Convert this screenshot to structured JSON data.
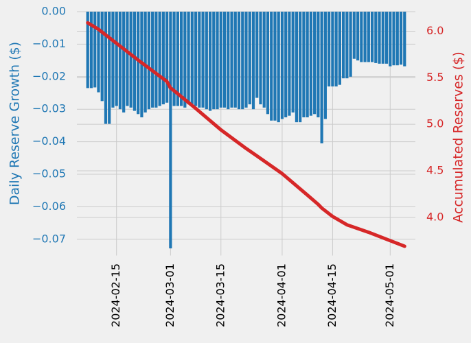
{
  "chart_data": {
    "type": "combo",
    "x": [
      "2024-02-07",
      "2024-02-08",
      "2024-02-09",
      "2024-02-10",
      "2024-02-11",
      "2024-02-12",
      "2024-02-13",
      "2024-02-14",
      "2024-02-15",
      "2024-02-16",
      "2024-02-17",
      "2024-02-18",
      "2024-02-19",
      "2024-02-20",
      "2024-02-21",
      "2024-02-22",
      "2024-02-23",
      "2024-02-24",
      "2024-02-25",
      "2024-02-26",
      "2024-02-27",
      "2024-02-28",
      "2024-02-29",
      "2024-03-01",
      "2024-03-02",
      "2024-03-03",
      "2024-03-04",
      "2024-03-05",
      "2024-03-06",
      "2024-03-07",
      "2024-03-08",
      "2024-03-09",
      "2024-03-10",
      "2024-03-11",
      "2024-03-12",
      "2024-03-13",
      "2024-03-14",
      "2024-03-15",
      "2024-03-16",
      "2024-03-17",
      "2024-03-18",
      "2024-03-19",
      "2024-03-20",
      "2024-03-21",
      "2024-03-22",
      "2024-03-23",
      "2024-03-24",
      "2024-03-25",
      "2024-03-26",
      "2024-03-27",
      "2024-03-28",
      "2024-03-29",
      "2024-03-30",
      "2024-03-31",
      "2024-04-01",
      "2024-04-02",
      "2024-04-03",
      "2024-04-04",
      "2024-04-05",
      "2024-04-06",
      "2024-04-07",
      "2024-04-08",
      "2024-04-09",
      "2024-04-10",
      "2024-04-11",
      "2024-04-12",
      "2024-04-13",
      "2024-04-14",
      "2024-04-15",
      "2024-04-16",
      "2024-04-17",
      "2024-04-18",
      "2024-04-19",
      "2024-04-20",
      "2024-04-21",
      "2024-04-22",
      "2024-04-23",
      "2024-04-24",
      "2024-04-25",
      "2024-04-26",
      "2024-04-27",
      "2024-04-28",
      "2024-04-29",
      "2024-04-30",
      "2024-05-01",
      "2024-05-02",
      "2024-05-03",
      "2024-05-04",
      "2024-05-05"
    ],
    "series": [
      {
        "type": "bar",
        "color": "#1f77b4",
        "axis": "y",
        "values": [
          -0.0235,
          -0.0235,
          -0.0233,
          -0.0248,
          -0.0275,
          -0.0345,
          -0.0345,
          -0.0295,
          -0.029,
          -0.03,
          -0.031,
          -0.029,
          -0.0295,
          -0.0305,
          -0.0315,
          -0.0325,
          -0.031,
          -0.03,
          -0.0295,
          -0.0295,
          -0.029,
          -0.0285,
          -0.028,
          -0.0728,
          -0.029,
          -0.029,
          -0.029,
          -0.0295,
          -0.0285,
          -0.0285,
          -0.029,
          -0.0295,
          -0.0295,
          -0.03,
          -0.0305,
          -0.03,
          -0.03,
          -0.0295,
          -0.0295,
          -0.03,
          -0.0295,
          -0.0295,
          -0.03,
          -0.03,
          -0.0295,
          -0.0285,
          -0.03,
          -0.0265,
          -0.0285,
          -0.0295,
          -0.0315,
          -0.0335,
          -0.0335,
          -0.034,
          -0.033,
          -0.0325,
          -0.032,
          -0.031,
          -0.034,
          -0.034,
          -0.0325,
          -0.0325,
          -0.032,
          -0.0315,
          -0.0325,
          -0.0405,
          -0.033,
          -0.023,
          -0.023,
          -0.023,
          -0.0225,
          -0.0205,
          -0.0205,
          -0.02,
          -0.0145,
          -0.015,
          -0.0155,
          -0.0155,
          -0.0155,
          -0.0155,
          -0.0158,
          -0.016,
          -0.016,
          -0.016,
          -0.0168,
          -0.0165,
          -0.0165,
          -0.0163,
          -0.0168
        ]
      },
      {
        "type": "line",
        "color": "#d62728",
        "axis": "y2",
        "x": [
          "2024-02-07",
          "2024-02-10",
          "2024-02-14",
          "2024-02-21",
          "2024-02-29",
          "2024-03-01",
          "2024-03-02",
          "2024-03-08",
          "2024-03-15",
          "2024-03-22",
          "2024-03-25",
          "2024-04-01",
          "2024-04-08",
          "2024-04-11",
          "2024-04-12",
          "2024-04-15",
          "2024-04-19",
          "2024-04-25",
          "2024-05-01",
          "2024-05-05"
        ],
        "values": [
          6.09,
          6.02,
          5.9,
          5.69,
          5.46,
          5.39,
          5.36,
          5.17,
          4.94,
          4.74,
          4.66,
          4.47,
          4.24,
          4.14,
          4.1,
          4.01,
          3.92,
          3.84,
          3.75,
          3.69
        ]
      }
    ],
    "ylabel": "Daily Reserve Growth ($)",
    "y2label": "Accumulated Reserves ($)",
    "xlim": [
      "2024-02-04",
      "2024-05-08"
    ],
    "xticks": [
      "2024-02-15",
      "2024-03-01",
      "2024-03-15",
      "2024-04-01",
      "2024-04-15",
      "2024-05-01"
    ],
    "ylim": [
      -0.075,
      0.0
    ],
    "yticks": [
      {
        "value": 0,
        "label": "0.00"
      },
      {
        "value": -0.01,
        "label": "−0.01"
      },
      {
        "value": -0.02,
        "label": "−0.02"
      },
      {
        "value": -0.03,
        "label": "−0.03"
      },
      {
        "value": -0.04,
        "label": "−0.04"
      },
      {
        "value": -0.05,
        "label": "−0.05"
      },
      {
        "value": -0.06,
        "label": "−0.06"
      },
      {
        "value": -0.07,
        "label": "−0.07"
      }
    ],
    "y2lim": [
      3.59,
      6.21
    ],
    "y2ticks": [
      {
        "value": 4,
        "label": "4.0"
      },
      4.5,
      {
        "value": 5,
        "label": "5.0"
      },
      5.5,
      {
        "value": 6,
        "label": "6.0"
      }
    ],
    "grid": true
  }
}
